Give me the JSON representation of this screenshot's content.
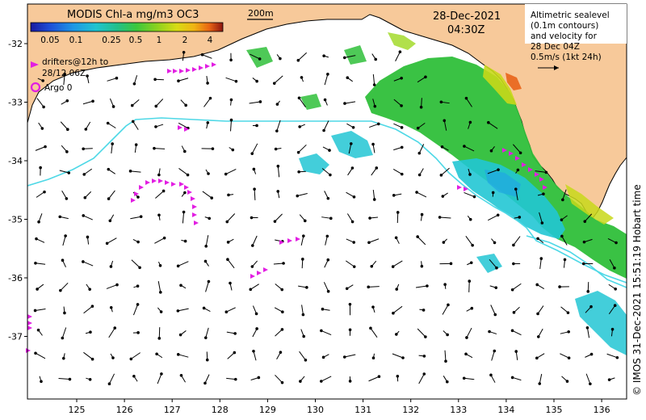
{
  "colorbar": {
    "title": "MODIS Chl-a mg/m3 OC3",
    "ticks": [
      "0.05",
      "0.1",
      "0.25",
      "0.5",
      "1",
      "2",
      "4"
    ],
    "colors": [
      "#1a1aa0",
      "#1f4fd8",
      "#1e96e6",
      "#20c4d0",
      "#22c08a",
      "#3cc83c",
      "#8ed21e",
      "#d8dc14",
      "#f0b414",
      "#e86414",
      "#c82814",
      "#8c1410"
    ]
  },
  "scale_bar_label": "200m",
  "title": {
    "date": "28-Dec-2021",
    "time": "04:30Z"
  },
  "velocity_legend": {
    "lines": [
      "Altimetric sealevel",
      "(0.1m contours)",
      "and velocity for",
      "28 Dec 04Z",
      "0.5m/s (1kt 24h)"
    ]
  },
  "legend": {
    "drifters_lines": [
      "drifters@12h to",
      "28/12 06Z"
    ],
    "argo": "Argo 0"
  },
  "axes": {
    "x_ticks": [
      "125",
      "126",
      "127",
      "128",
      "129",
      "130",
      "131",
      "132",
      "133",
      "134",
      "135",
      "136"
    ],
    "y_ticks": [
      "-32",
      "-33",
      "-34",
      "-35",
      "-36",
      "-37"
    ]
  },
  "credit": "© IMOS 31-Dec-2021 15:51:19 Hobart time",
  "colors": {
    "land": "#f7c99a",
    "ocean": "#ffffff",
    "drifter": "#e21ee2",
    "contour": "#4ed8e6",
    "chl_high": "#2fbf3a",
    "chl_low": "#22c6d4"
  }
}
